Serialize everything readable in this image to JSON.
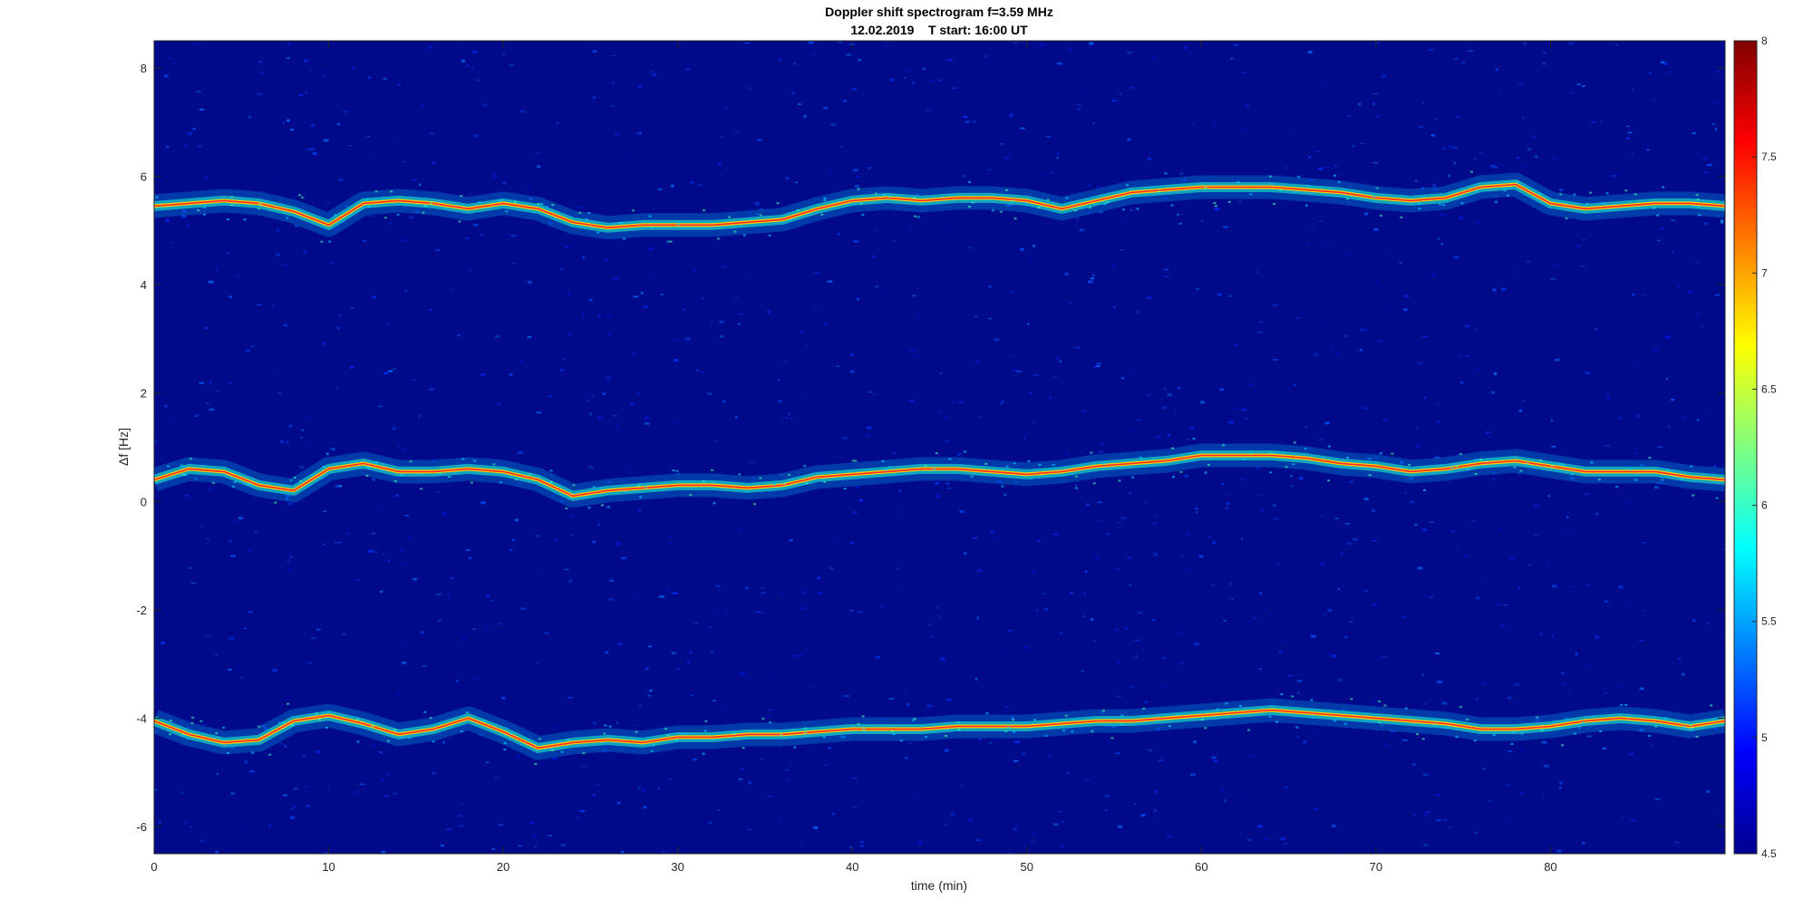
{
  "chart_data": {
    "type": "heatmap",
    "title": "Doppler shift spectrogram f=3.59 MHz",
    "subtitle": "12.02.2019    T start: 16:00 UT",
    "xlabel": "time (min)",
    "ylabel": "Δf [Hz]",
    "xlim": [
      0,
      90
    ],
    "ylim": [
      -6.5,
      8.5
    ],
    "xticks": [
      "0",
      "10",
      "20",
      "30",
      "40",
      "50",
      "60",
      "70",
      "80"
    ],
    "yticks": [
      "8",
      "6",
      "4",
      "2",
      "0",
      "-2",
      "-4",
      "-6"
    ],
    "colorbar": {
      "colormap": "jet",
      "limits": [
        4.5,
        8
      ],
      "ticks": [
        "8",
        "7.5",
        "7",
        "6.5",
        "6",
        "5.5",
        "5",
        "4.5"
      ]
    },
    "background_color": "#000a8a",
    "series": [
      {
        "x": [
          0,
          2,
          4,
          6,
          8,
          10,
          12,
          14,
          16,
          18,
          20,
          22,
          24,
          26,
          28,
          30,
          32,
          34,
          36,
          38,
          40,
          42,
          44,
          46,
          48,
          50,
          52,
          54,
          56,
          58,
          60,
          62,
          64,
          66,
          68,
          70,
          72,
          74,
          76,
          78,
          80,
          82,
          84,
          86,
          88,
          90
        ],
        "y": [
          5.45,
          5.5,
          5.55,
          5.5,
          5.35,
          5.1,
          5.5,
          5.55,
          5.5,
          5.4,
          5.5,
          5.4,
          5.15,
          5.05,
          5.1,
          5.1,
          5.1,
          5.15,
          5.2,
          5.4,
          5.55,
          5.6,
          5.55,
          5.6,
          5.6,
          5.55,
          5.4,
          5.55,
          5.7,
          5.75,
          5.8,
          5.8,
          5.8,
          5.75,
          5.7,
          5.6,
          5.55,
          5.6,
          5.8,
          5.85,
          5.5,
          5.4,
          5.45,
          5.5,
          5.5,
          5.45
        ]
      },
      {
        "x": [
          0,
          2,
          4,
          6,
          8,
          10,
          12,
          14,
          16,
          18,
          20,
          22,
          24,
          26,
          28,
          30,
          32,
          34,
          36,
          38,
          40,
          42,
          44,
          46,
          48,
          50,
          52,
          54,
          56,
          58,
          60,
          62,
          64,
          66,
          68,
          70,
          72,
          74,
          76,
          78,
          80,
          82,
          84,
          86,
          88,
          90
        ],
        "y": [
          0.4,
          0.6,
          0.55,
          0.3,
          0.2,
          0.6,
          0.7,
          0.55,
          0.55,
          0.6,
          0.55,
          0.4,
          0.1,
          0.2,
          0.25,
          0.3,
          0.3,
          0.25,
          0.3,
          0.45,
          0.5,
          0.55,
          0.6,
          0.6,
          0.55,
          0.5,
          0.55,
          0.65,
          0.7,
          0.75,
          0.85,
          0.85,
          0.85,
          0.8,
          0.7,
          0.65,
          0.55,
          0.6,
          0.7,
          0.75,
          0.65,
          0.55,
          0.55,
          0.55,
          0.45,
          0.4
        ]
      },
      {
        "x": [
          0,
          2,
          4,
          6,
          8,
          10,
          12,
          14,
          16,
          18,
          20,
          22,
          24,
          26,
          28,
          30,
          32,
          34,
          36,
          38,
          40,
          42,
          44,
          46,
          48,
          50,
          52,
          54,
          56,
          58,
          60,
          62,
          64,
          66,
          68,
          70,
          72,
          74,
          76,
          78,
          80,
          82,
          84,
          86,
          88,
          90
        ],
        "y": [
          -4.05,
          -4.3,
          -4.45,
          -4.4,
          -4.05,
          -3.95,
          -4.1,
          -4.3,
          -4.2,
          -4.0,
          -4.25,
          -4.55,
          -4.45,
          -4.4,
          -4.45,
          -4.35,
          -4.35,
          -4.3,
          -4.3,
          -4.25,
          -4.2,
          -4.2,
          -4.2,
          -4.15,
          -4.15,
          -4.15,
          -4.1,
          -4.05,
          -4.05,
          -4.0,
          -3.95,
          -3.9,
          -3.85,
          -3.9,
          -3.95,
          -4.0,
          -4.05,
          -4.1,
          -4.2,
          -4.2,
          -4.15,
          -4.05,
          -4.0,
          -4.05,
          -4.15,
          -4.05
        ]
      }
    ]
  }
}
